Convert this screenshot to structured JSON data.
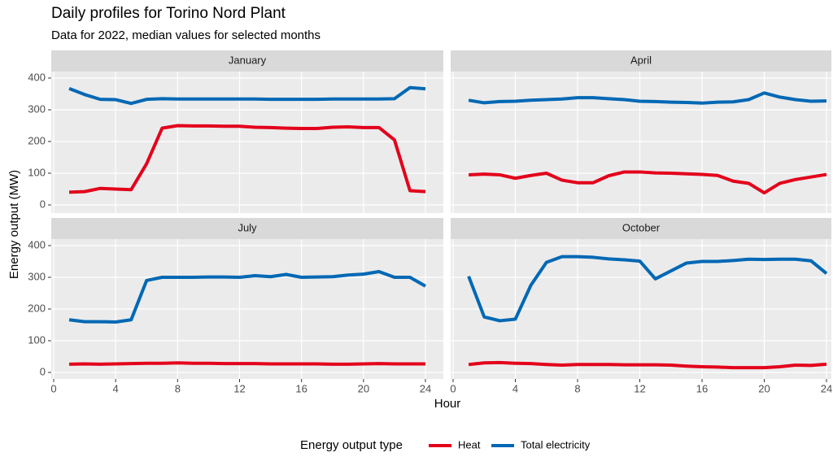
{
  "chart_data": {
    "type": "line",
    "title": "Daily profiles for Torino Nord Plant",
    "subtitle": "Data for 2022, median values for selected months",
    "x_label": "Hour",
    "y_label": "Energy output (MW)",
    "legend_title": "Energy output type",
    "grid": true,
    "x": [
      1,
      2,
      3,
      4,
      5,
      6,
      7,
      8,
      9,
      10,
      11,
      12,
      13,
      14,
      15,
      16,
      17,
      18,
      19,
      20,
      21,
      22,
      23,
      24
    ],
    "xlim": [
      0,
      24
    ],
    "xticks": [
      0,
      4,
      8,
      12,
      16,
      20,
      24
    ],
    "ylim": [
      0,
      400
    ],
    "yticks": [
      0,
      100,
      200,
      300,
      400
    ],
    "panels": [
      {
        "title": "January",
        "series": [
          {
            "name": "Heat",
            "color": "#e3001b",
            "values": [
              40,
              42,
              52,
              50,
              48,
              130,
              242,
              250,
              249,
              249,
              248,
              248,
              245,
              244,
              242,
              241,
              241,
              245,
              246,
              244,
              244,
              205,
              45,
              42
            ]
          },
          {
            "name": "Total electricity",
            "color": "#0068b4",
            "values": [
              367,
              348,
              333,
              332,
              320,
              333,
              335,
              334,
              334,
              334,
              334,
              334,
              334,
              333,
              333,
              333,
              333,
              334,
              334,
              334,
              334,
              335,
              370,
              366
            ]
          }
        ]
      },
      {
        "title": "April",
        "series": [
          {
            "name": "Heat",
            "color": "#e3001b",
            "values": [
              95,
              97,
              95,
              84,
              93,
              100,
              78,
              70,
              70,
              92,
              104,
              104,
              101,
              100,
              98,
              96,
              93,
              75,
              68,
              38,
              68,
              80,
              88,
              96
            ]
          },
          {
            "name": "Total electricity",
            "color": "#0068b4",
            "values": [
              330,
              322,
              326,
              327,
              330,
              332,
              334,
              338,
              338,
              335,
              332,
              327,
              326,
              324,
              323,
              321,
              324,
              325,
              332,
              353,
              340,
              332,
              327,
              328
            ]
          }
        ]
      },
      {
        "title": "July",
        "series": [
          {
            "name": "Heat",
            "color": "#e3001b",
            "values": [
              26,
              27,
              26,
              27,
              28,
              29,
              29,
              30,
              29,
              29,
              28,
              28,
              28,
              27,
              27,
              27,
              27,
              26,
              26,
              27,
              28,
              27,
              27,
              27
            ]
          },
          {
            "name": "Total electricity",
            "color": "#0068b4",
            "values": [
              166,
              160,
              160,
              159,
              166,
              290,
              300,
              300,
              300,
              301,
              301,
              300,
              305,
              302,
              309,
              300,
              301,
              302,
              307,
              310,
              318,
              300,
              300,
              272
            ]
          }
        ]
      },
      {
        "title": "October",
        "series": [
          {
            "name": "Heat",
            "color": "#e3001b",
            "values": [
              25,
              30,
              31,
              29,
              28,
              25,
              23,
              25,
              25,
              25,
              24,
              24,
              24,
              23,
              20,
              18,
              17,
              15,
              15,
              15,
              18,
              23,
              22,
              26
            ]
          },
          {
            "name": "Total electricity",
            "color": "#0068b4",
            "values": [
              303,
              175,
              163,
              168,
              275,
              347,
              365,
              365,
              363,
              358,
              355,
              351,
              295,
              320,
              345,
              350,
              350,
              353,
              357,
              356,
              357,
              357,
              352,
              312
            ]
          }
        ]
      }
    ]
  }
}
